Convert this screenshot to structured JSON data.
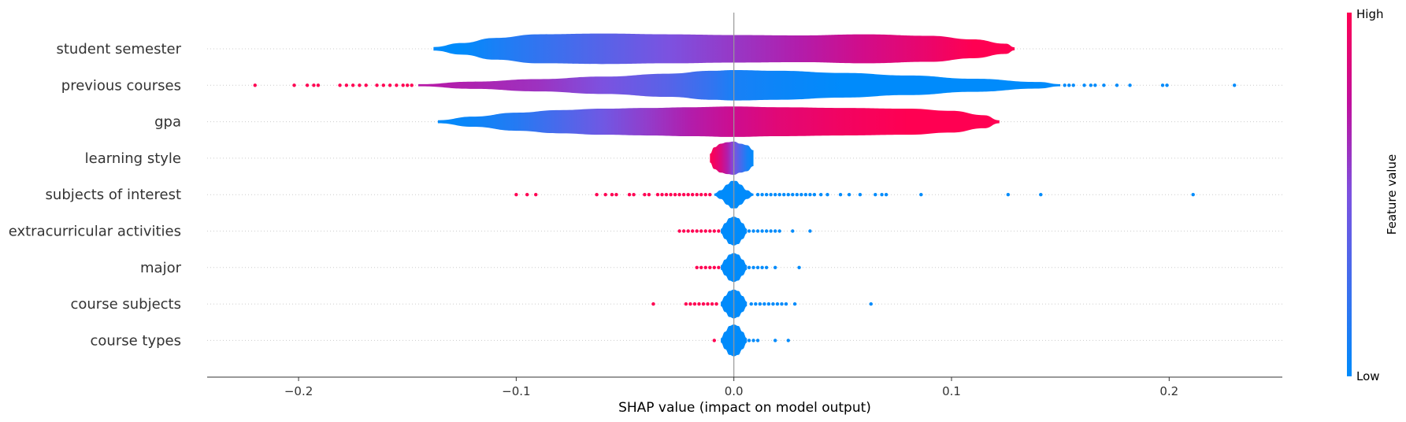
{
  "chart_data": {
    "type": "violin",
    "xlabel": "SHAP value (impact on model output)",
    "xlim": [
      -0.242,
      0.252
    ],
    "x_ticks": [
      {
        "value": -0.2,
        "label": "−0.2"
      },
      {
        "value": -0.1,
        "label": "−0.1"
      },
      {
        "value": 0.0,
        "label": "0.0"
      },
      {
        "value": 0.1,
        "label": "0.1"
      },
      {
        "value": 0.2,
        "label": "0.2"
      }
    ],
    "colorbar": {
      "title": "Feature value",
      "high_label": "High",
      "low_label": "Low",
      "high_color": "#ff0052",
      "low_color": "#008bfb"
    },
    "features": [
      {
        "name": "student semester",
        "violin": {
          "x": [
            -0.138,
            -0.125,
            -0.11,
            -0.09,
            -0.06,
            -0.03,
            0.0,
            0.03,
            0.06,
            0.09,
            0.11,
            0.125,
            0.129
          ],
          "half_width": [
            0.05,
            0.16,
            0.3,
            0.4,
            0.42,
            0.4,
            0.38,
            0.37,
            0.4,
            0.36,
            0.26,
            0.14,
            0.04
          ],
          "feature_value": [
            0.0,
            0.0,
            0.1,
            0.2,
            0.35,
            0.5,
            0.6,
            0.7,
            0.82,
            0.92,
            1.0,
            1.0,
            1.0
          ]
        },
        "points": []
      },
      {
        "name": "previous courses",
        "violin": {
          "x": [
            -0.145,
            -0.12,
            -0.09,
            -0.06,
            -0.03,
            -0.01,
            0.0,
            0.02,
            0.05,
            0.08,
            0.11,
            0.14,
            0.15
          ],
          "half_width": [
            0.03,
            0.1,
            0.17,
            0.24,
            0.32,
            0.4,
            0.42,
            0.4,
            0.34,
            0.27,
            0.18,
            0.09,
            0.03
          ],
          "feature_value": [
            0.72,
            0.68,
            0.62,
            0.5,
            0.35,
            0.2,
            0.1,
            0.05,
            0.0,
            0.0,
            0.0,
            0.0,
            0.0
          ]
        },
        "points": [
          {
            "x": -0.22,
            "v": 1
          },
          {
            "x": -0.202,
            "v": 1
          },
          {
            "x": -0.196,
            "v": 1
          },
          {
            "x": -0.193,
            "v": 1
          },
          {
            "x": -0.191,
            "v": 1
          },
          {
            "x": -0.181,
            "v": 1
          },
          {
            "x": -0.178,
            "v": 1
          },
          {
            "x": -0.175,
            "v": 1
          },
          {
            "x": -0.172,
            "v": 1
          },
          {
            "x": -0.169,
            "v": 1
          },
          {
            "x": -0.164,
            "v": 1
          },
          {
            "x": -0.161,
            "v": 1
          },
          {
            "x": -0.158,
            "v": 1
          },
          {
            "x": -0.155,
            "v": 1
          },
          {
            "x": -0.152,
            "v": 1
          },
          {
            "x": -0.15,
            "v": 1
          },
          {
            "x": -0.148,
            "v": 1
          },
          {
            "x": 0.152,
            "v": 0
          },
          {
            "x": 0.154,
            "v": 0
          },
          {
            "x": 0.156,
            "v": 0
          },
          {
            "x": 0.161,
            "v": 0
          },
          {
            "x": 0.164,
            "v": 0
          },
          {
            "x": 0.166,
            "v": 0
          },
          {
            "x": 0.17,
            "v": 0
          },
          {
            "x": 0.176,
            "v": 0
          },
          {
            "x": 0.182,
            "v": 0
          },
          {
            "x": 0.197,
            "v": 0
          },
          {
            "x": 0.199,
            "v": 0
          },
          {
            "x": 0.23,
            "v": 0
          }
        ]
      },
      {
        "name": "gpa",
        "violin": {
          "x": [
            -0.136,
            -0.12,
            -0.1,
            -0.08,
            -0.06,
            -0.04,
            -0.02,
            0.0,
            0.02,
            0.05,
            0.08,
            0.1,
            0.115,
            0.122
          ],
          "half_width": [
            0.04,
            0.14,
            0.25,
            0.32,
            0.36,
            0.38,
            0.4,
            0.42,
            0.4,
            0.38,
            0.36,
            0.3,
            0.18,
            0.04
          ],
          "feature_value": [
            0.0,
            0.05,
            0.15,
            0.3,
            0.45,
            0.58,
            0.7,
            0.8,
            0.88,
            0.95,
            1.0,
            1.0,
            1.0,
            1.0
          ]
        },
        "points": []
      },
      {
        "name": "learning style",
        "violin": {
          "x": [
            -0.011,
            -0.009,
            -0.006,
            -0.003,
            0.0,
            0.003,
            0.006,
            0.009
          ],
          "half_width": [
            0.12,
            0.3,
            0.4,
            0.44,
            0.46,
            0.4,
            0.36,
            0.22
          ],
          "feature_value": [
            1.0,
            0.95,
            0.85,
            0.7,
            0.5,
            0.3,
            0.1,
            0.0
          ]
        },
        "points": []
      },
      {
        "name": "subjects of interest",
        "violin": {
          "x": [
            -0.009,
            -0.006,
            -0.003,
            -0.001,
            0.001,
            0.003,
            0.006,
            0.009
          ],
          "half_width": [
            0.03,
            0.12,
            0.28,
            0.38,
            0.38,
            0.28,
            0.12,
            0.03
          ],
          "feature_value": [
            0.0,
            0.0,
            0.0,
            0.0,
            0.0,
            0.0,
            0.0,
            0.0
          ]
        },
        "points": [
          {
            "x": -0.1,
            "v": 1
          },
          {
            "x": -0.095,
            "v": 1
          },
          {
            "x": -0.091,
            "v": 1
          },
          {
            "x": -0.063,
            "v": 1
          },
          {
            "x": -0.059,
            "v": 1
          },
          {
            "x": -0.056,
            "v": 1
          },
          {
            "x": -0.054,
            "v": 1
          },
          {
            "x": -0.048,
            "v": 1
          },
          {
            "x": -0.046,
            "v": 1
          },
          {
            "x": -0.041,
            "v": 1
          },
          {
            "x": -0.039,
            "v": 1
          },
          {
            "x": -0.035,
            "v": 1
          },
          {
            "x": -0.033,
            "v": 1
          },
          {
            "x": -0.031,
            "v": 1
          },
          {
            "x": -0.029,
            "v": 1
          },
          {
            "x": -0.027,
            "v": 1
          },
          {
            "x": -0.025,
            "v": 1
          },
          {
            "x": -0.023,
            "v": 1
          },
          {
            "x": -0.021,
            "v": 1
          },
          {
            "x": -0.019,
            "v": 1
          },
          {
            "x": -0.017,
            "v": 1
          },
          {
            "x": -0.015,
            "v": 1
          },
          {
            "x": -0.013,
            "v": 1
          },
          {
            "x": -0.011,
            "v": 1
          },
          {
            "x": 0.011,
            "v": 0
          },
          {
            "x": 0.013,
            "v": 0
          },
          {
            "x": 0.015,
            "v": 0
          },
          {
            "x": 0.017,
            "v": 0
          },
          {
            "x": 0.019,
            "v": 0
          },
          {
            "x": 0.021,
            "v": 0
          },
          {
            "x": 0.023,
            "v": 0
          },
          {
            "x": 0.025,
            "v": 0
          },
          {
            "x": 0.027,
            "v": 0
          },
          {
            "x": 0.029,
            "v": 0
          },
          {
            "x": 0.031,
            "v": 0
          },
          {
            "x": 0.033,
            "v": 0
          },
          {
            "x": 0.035,
            "v": 0
          },
          {
            "x": 0.037,
            "v": 0
          },
          {
            "x": 0.04,
            "v": 0
          },
          {
            "x": 0.043,
            "v": 0
          },
          {
            "x": 0.049,
            "v": 0
          },
          {
            "x": 0.053,
            "v": 0
          },
          {
            "x": 0.058,
            "v": 0
          },
          {
            "x": 0.065,
            "v": 0
          },
          {
            "x": 0.068,
            "v": 0
          },
          {
            "x": 0.07,
            "v": 0
          },
          {
            "x": 0.086,
            "v": 0
          },
          {
            "x": 0.126,
            "v": 0
          },
          {
            "x": 0.141,
            "v": 0
          },
          {
            "x": 0.211,
            "v": 0
          }
        ]
      },
      {
        "name": "extracurricular activities",
        "violin": {
          "x": [
            -0.006,
            -0.004,
            -0.002,
            0.0,
            0.002,
            0.004,
            0.006
          ],
          "half_width": [
            0.06,
            0.22,
            0.36,
            0.4,
            0.36,
            0.22,
            0.06
          ],
          "feature_value": [
            0.0,
            0.0,
            0.0,
            0.0,
            0.0,
            0.0,
            0.0
          ]
        },
        "points": [
          {
            "x": -0.025,
            "v": 1
          },
          {
            "x": -0.023,
            "v": 1
          },
          {
            "x": -0.021,
            "v": 1
          },
          {
            "x": -0.019,
            "v": 1
          },
          {
            "x": -0.017,
            "v": 1
          },
          {
            "x": -0.015,
            "v": 1
          },
          {
            "x": -0.013,
            "v": 1
          },
          {
            "x": -0.011,
            "v": 1
          },
          {
            "x": -0.009,
            "v": 1
          },
          {
            "x": -0.007,
            "v": 1
          },
          {
            "x": 0.007,
            "v": 0
          },
          {
            "x": 0.009,
            "v": 0
          },
          {
            "x": 0.011,
            "v": 0
          },
          {
            "x": 0.013,
            "v": 0
          },
          {
            "x": 0.015,
            "v": 0
          },
          {
            "x": 0.017,
            "v": 0
          },
          {
            "x": 0.019,
            "v": 0
          },
          {
            "x": 0.021,
            "v": 0
          },
          {
            "x": 0.027,
            "v": 0
          },
          {
            "x": 0.035,
            "v": 0
          }
        ]
      },
      {
        "name": "major",
        "violin": {
          "x": [
            -0.006,
            -0.004,
            -0.002,
            0.0,
            0.002,
            0.004,
            0.006
          ],
          "half_width": [
            0.06,
            0.22,
            0.36,
            0.4,
            0.36,
            0.22,
            0.06
          ],
          "feature_value": [
            0.0,
            0.0,
            0.0,
            0.0,
            0.0,
            0.0,
            0.0
          ]
        },
        "points": [
          {
            "x": -0.017,
            "v": 1
          },
          {
            "x": -0.015,
            "v": 1
          },
          {
            "x": -0.013,
            "v": 1
          },
          {
            "x": -0.011,
            "v": 1
          },
          {
            "x": -0.009,
            "v": 1
          },
          {
            "x": -0.007,
            "v": 1
          },
          {
            "x": 0.007,
            "v": 0
          },
          {
            "x": 0.009,
            "v": 0
          },
          {
            "x": 0.011,
            "v": 0
          },
          {
            "x": 0.013,
            "v": 0
          },
          {
            "x": 0.015,
            "v": 0
          },
          {
            "x": 0.019,
            "v": 0
          },
          {
            "x": 0.03,
            "v": 0
          }
        ]
      },
      {
        "name": "course subjects",
        "violin": {
          "x": [
            -0.006,
            -0.004,
            -0.002,
            0.0,
            0.002,
            0.004,
            0.006
          ],
          "half_width": [
            0.06,
            0.22,
            0.36,
            0.4,
            0.36,
            0.22,
            0.06
          ],
          "feature_value": [
            0.0,
            0.0,
            0.0,
            0.0,
            0.0,
            0.0,
            0.0
          ]
        },
        "points": [
          {
            "x": -0.037,
            "v": 1
          },
          {
            "x": -0.022,
            "v": 1
          },
          {
            "x": -0.02,
            "v": 1
          },
          {
            "x": -0.018,
            "v": 1
          },
          {
            "x": -0.016,
            "v": 1
          },
          {
            "x": -0.014,
            "v": 1
          },
          {
            "x": -0.012,
            "v": 1
          },
          {
            "x": -0.01,
            "v": 1
          },
          {
            "x": -0.008,
            "v": 1
          },
          {
            "x": 0.008,
            "v": 0
          },
          {
            "x": 0.01,
            "v": 0
          },
          {
            "x": 0.012,
            "v": 0
          },
          {
            "x": 0.014,
            "v": 0
          },
          {
            "x": 0.016,
            "v": 0
          },
          {
            "x": 0.018,
            "v": 0
          },
          {
            "x": 0.02,
            "v": 0
          },
          {
            "x": 0.022,
            "v": 0
          },
          {
            "x": 0.024,
            "v": 0
          },
          {
            "x": 0.028,
            "v": 0
          },
          {
            "x": 0.063,
            "v": 0
          }
        ]
      },
      {
        "name": "course types",
        "violin": {
          "x": [
            -0.006,
            -0.004,
            -0.002,
            0.0,
            0.002,
            0.004,
            0.006
          ],
          "half_width": [
            0.06,
            0.24,
            0.4,
            0.44,
            0.4,
            0.24,
            0.06
          ],
          "feature_value": [
            0.0,
            0.0,
            0.0,
            0.0,
            0.0,
            0.0,
            0.0
          ]
        },
        "points": [
          {
            "x": -0.009,
            "v": 1
          },
          {
            "x": 0.007,
            "v": 0
          },
          {
            "x": 0.009,
            "v": 0
          },
          {
            "x": 0.011,
            "v": 0
          },
          {
            "x": 0.019,
            "v": 0
          },
          {
            "x": 0.025,
            "v": 0
          }
        ]
      }
    ]
  }
}
